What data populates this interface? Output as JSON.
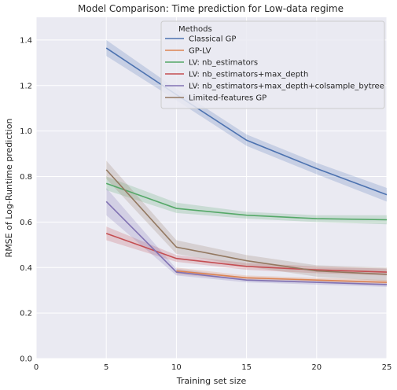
{
  "chart_data": {
    "type": "line",
    "title": "Model Comparison: Time prediction for Low-data regime",
    "xlabel": "Training set size",
    "ylabel": "RMSE of Log-Runtime prediction",
    "xlim": [
      0,
      25
    ],
    "ylim": [
      0,
      1.5
    ],
    "xticks": [
      "0",
      "5",
      "10",
      "15",
      "20",
      "25"
    ],
    "yticks": [
      "0.0",
      "0.2",
      "0.4",
      "0.6",
      "0.8",
      "1.0",
      "1.2",
      "1.4"
    ],
    "grid": true,
    "background": "#eaeaf2",
    "legend": {
      "title": "Methods",
      "placement": "top-right"
    },
    "x": [
      5,
      10,
      15,
      20,
      25
    ],
    "series": [
      {
        "name": "Classical GP",
        "color": "#4c72b0",
        "values": [
          1.365,
          1.16,
          0.96,
          0.835,
          0.72
        ],
        "lower": [
          1.33,
          1.135,
          0.935,
          0.81,
          0.69
        ],
        "upper": [
          1.4,
          1.185,
          0.985,
          0.86,
          0.75
        ]
      },
      {
        "name": "GP-LV",
        "color": "#dd8452",
        "values": [
          null,
          0.385,
          0.355,
          0.345,
          0.335
        ],
        "lower": [
          null,
          0.37,
          0.345,
          0.335,
          0.325
        ],
        "upper": [
          null,
          0.4,
          0.365,
          0.355,
          0.345
        ]
      },
      {
        "name": "LV: nb_estimators",
        "color": "#55a868",
        "values": [
          0.77,
          0.66,
          0.63,
          0.615,
          0.61
        ],
        "lower": [
          0.74,
          0.64,
          0.615,
          0.6,
          0.59
        ],
        "upper": [
          0.8,
          0.685,
          0.645,
          0.63,
          0.63
        ]
      },
      {
        "name": "LV: nb_estimators+max_depth",
        "color": "#c44e52",
        "values": [
          0.55,
          0.44,
          0.405,
          0.39,
          0.38
        ],
        "lower": [
          0.52,
          0.425,
          0.39,
          0.375,
          0.365
        ],
        "upper": [
          0.58,
          0.455,
          0.42,
          0.405,
          0.395
        ]
      },
      {
        "name": "LV: nb_estimators+max_depth+colsample_bytree",
        "color": "#8172b3",
        "values": [
          0.69,
          0.38,
          0.345,
          0.335,
          0.325
        ],
        "lower": [
          0.63,
          0.365,
          0.335,
          0.325,
          0.315
        ],
        "upper": [
          0.75,
          0.395,
          0.355,
          0.345,
          0.335
        ]
      },
      {
        "name": "Limited-features GP",
        "color": "#937860",
        "values": [
          0.83,
          0.49,
          0.43,
          0.385,
          0.37
        ],
        "lower": [
          0.79,
          0.46,
          0.405,
          0.36,
          0.34
        ],
        "upper": [
          0.87,
          0.52,
          0.455,
          0.41,
          0.4
        ]
      }
    ]
  }
}
